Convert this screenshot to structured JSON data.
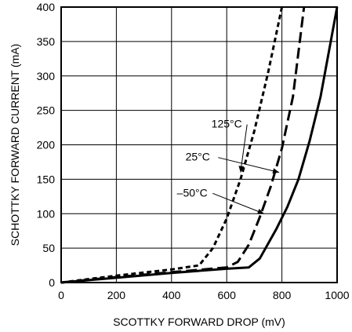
{
  "chart_data": {
    "type": "line",
    "xlabel": "SCOTTKY FORWARD DROP (mV)",
    "ylabel": "SCHOTTKY FORWARD CURRENT (mA)",
    "xlim": [
      0,
      1000
    ],
    "ylim": [
      0,
      400
    ],
    "xticks": [
      0,
      200,
      400,
      600,
      800,
      1000
    ],
    "yticks": [
      0,
      50,
      100,
      150,
      200,
      250,
      300,
      350,
      400
    ],
    "xtick_labels": [
      "0",
      "200",
      "400",
      "600",
      "800",
      "1000"
    ],
    "ytick_labels": [
      "0",
      "50",
      "100",
      "150",
      "200",
      "250",
      "300",
      "350",
      "400"
    ],
    "grid": true,
    "series": [
      {
        "name": "125°C",
        "style": "short-dash",
        "x": [
          0,
          200,
          400,
          500,
          550,
          600,
          650,
          700,
          750,
          800
        ],
        "y": [
          0,
          10,
          19,
          25,
          50,
          93,
          150,
          220,
          305,
          400
        ]
      },
      {
        "name": "25°C",
        "style": "long-dash",
        "x": [
          0,
          200,
          400,
          600,
          640,
          680,
          720,
          760,
          800,
          840,
          880
        ],
        "y": [
          0,
          8,
          15,
          22,
          30,
          55,
          95,
          140,
          195,
          270,
          400
        ]
      },
      {
        "name": "–50°C",
        "style": "solid",
        "x": [
          0,
          200,
          400,
          600,
          680,
          720,
          780,
          820,
          860,
          900,
          940,
          1000
        ],
        "y": [
          0,
          7,
          14,
          20,
          22,
          35,
          78,
          110,
          150,
          205,
          270,
          400
        ]
      }
    ],
    "annotations": [
      {
        "text": "125°C",
        "series": "125°C",
        "label_at": [
          600,
          225
        ],
        "arrow_to": [
          650,
          160
        ]
      },
      {
        "text": "25°C",
        "series": "25°C",
        "label_at": [
          495,
          177
        ],
        "arrow_to": [
          790,
          160
        ]
      },
      {
        "text": "–50°C",
        "series": "–50°C",
        "label_at": [
          475,
          125
        ],
        "arrow_to": [
          735,
          100
        ]
      }
    ]
  }
}
